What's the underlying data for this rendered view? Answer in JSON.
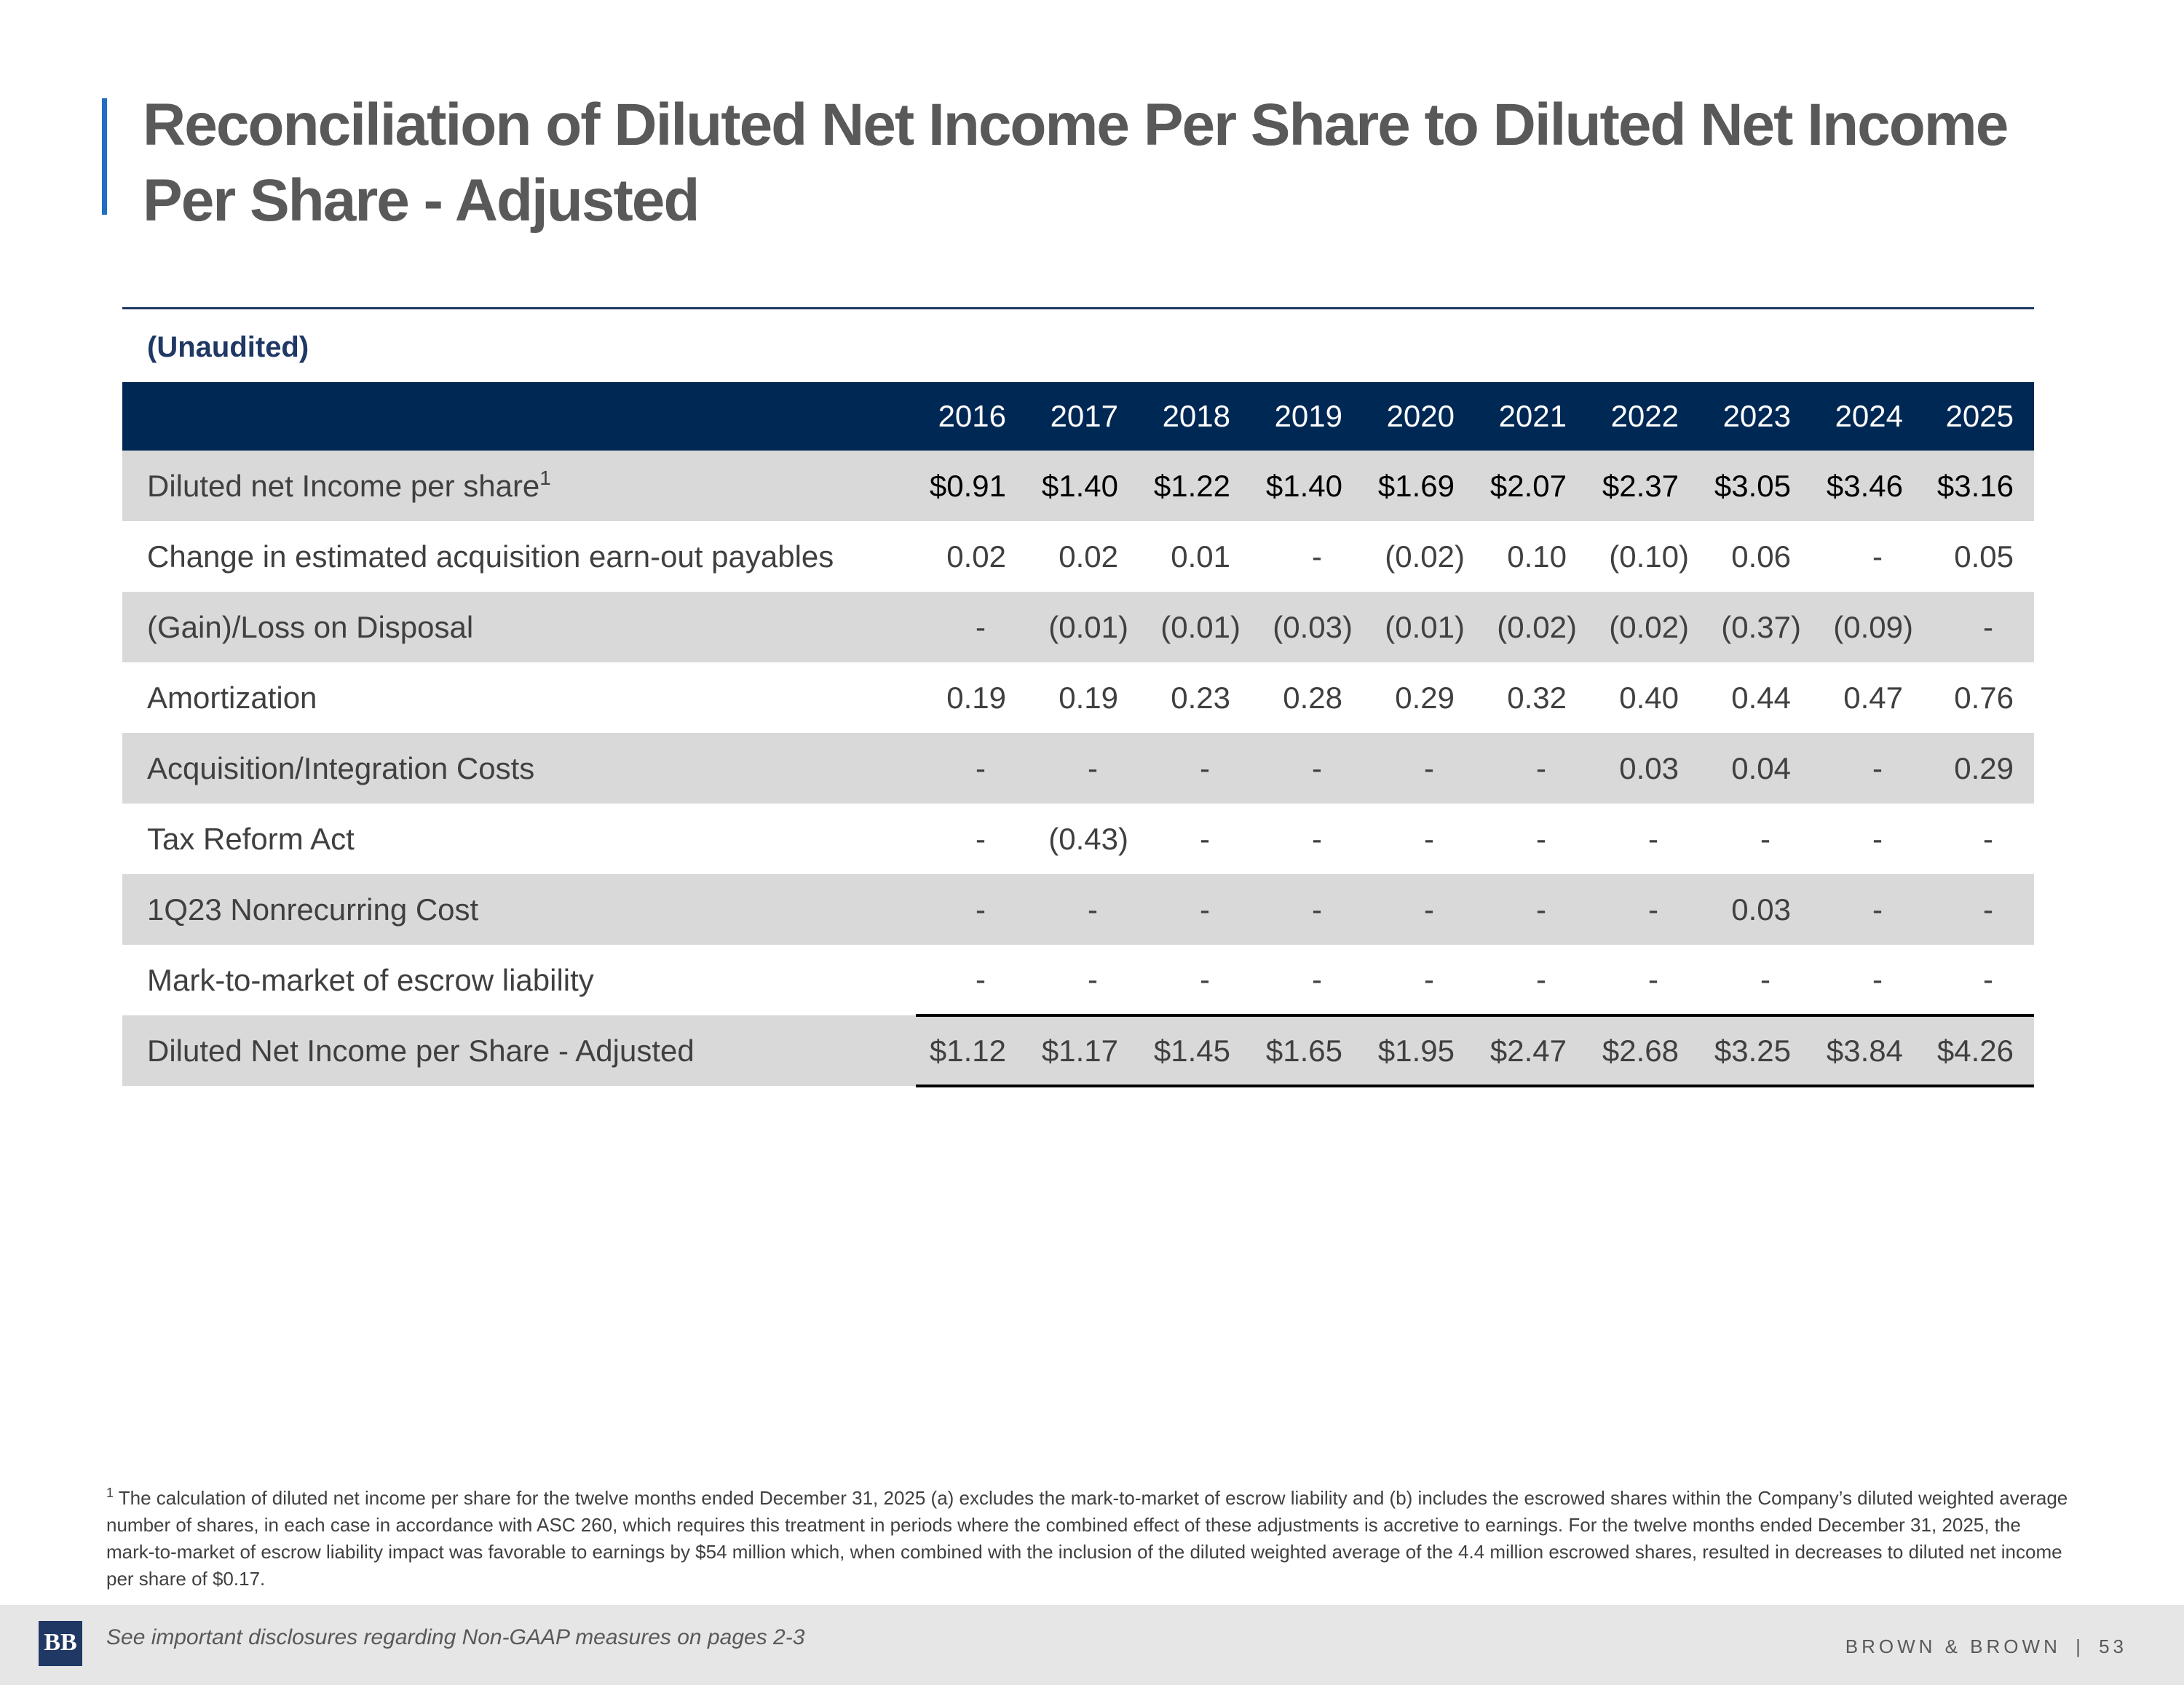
{
  "title": "Reconciliation of Diluted Net Income Per Share to Diluted Net Income Per Share - Adjusted",
  "table": {
    "caption": "(Unaudited)",
    "years": [
      "2016",
      "2017",
      "2018",
      "2019",
      "2020",
      "2021",
      "2022",
      "2023",
      "2024",
      "2025"
    ],
    "rows": [
      {
        "label": "Diluted net Income per share",
        "sup": "1",
        "values": [
          "$0.91",
          "$1.40",
          "$1.22",
          "$1.40",
          "$1.69",
          "$2.07",
          "$2.37",
          "$3.05",
          "$3.46",
          "$3.16"
        ]
      },
      {
        "label": "Change in estimated acquisition earn-out payables",
        "sup": "",
        "values": [
          "0.02",
          "0.02",
          "0.01",
          "-",
          "(0.02)",
          "0.10",
          "(0.10)",
          "0.06",
          "-",
          "0.05"
        ]
      },
      {
        "label": "(Gain)/Loss on Disposal",
        "sup": "",
        "values": [
          "-",
          "(0.01)",
          "(0.01)",
          "(0.03)",
          "(0.01)",
          "(0.02)",
          "(0.02)",
          "(0.37)",
          "(0.09)",
          "-"
        ]
      },
      {
        "label": "Amortization",
        "sup": "",
        "values": [
          "0.19",
          "0.19",
          "0.23",
          "0.28",
          "0.29",
          "0.32",
          "0.40",
          "0.44",
          "0.47",
          "0.76"
        ]
      },
      {
        "label": "Acquisition/Integration Costs",
        "sup": "",
        "values": [
          "-",
          "-",
          "-",
          "-",
          "-",
          "-",
          "0.03",
          "0.04",
          "-",
          "0.29"
        ]
      },
      {
        "label": "Tax Reform Act",
        "sup": "",
        "values": [
          "-",
          "(0.43)",
          "-",
          "-",
          "-",
          "-",
          "-",
          "-",
          "-",
          "-"
        ]
      },
      {
        "label": "1Q23 Nonrecurring Cost",
        "sup": "",
        "values": [
          "-",
          "-",
          "-",
          "-",
          "-",
          "-",
          "-",
          "0.03",
          "-",
          "-"
        ]
      },
      {
        "label": "Mark-to-market of escrow liability",
        "sup": "",
        "values": [
          "-",
          "-",
          "-",
          "-",
          "-",
          "-",
          "-",
          "-",
          "-",
          "-"
        ]
      }
    ],
    "total": {
      "label": "Diluted Net Income per Share - Adjusted",
      "values": [
        "$1.12",
        "$1.17",
        "$1.45",
        "$1.65",
        "$1.95",
        "$2.47",
        "$2.68",
        "$3.25",
        "$3.84",
        "$4.26"
      ]
    }
  },
  "footnote": {
    "marker": "1",
    "text": "The calculation of diluted net income per share for the twelve months ended December 31, 2025 (a) excludes the mark-to-market of escrow liability and (b) includes the escrowed shares within the Company’s diluted weighted average number of shares, in each case in accordance with ASC 260, which requires this treatment in periods where the combined effect of these adjustments is accretive to earnings. For the twelve months ended December 31, 2025, the mark-to-market of escrow liability impact was favorable to earnings by $54 million which, when combined with the inclusion of the diluted weighted average of the 4.4 million escrowed shares, resulted in decreases to diluted net income per share of $0.17."
  },
  "footer": {
    "logo_text": "BB",
    "disclosure": "See important disclosures regarding Non-GAAP measures on pages 2-3",
    "brand": "BROWN & BROWN",
    "separator": "|",
    "page_number": "53"
  },
  "colors": {
    "header_navy": "#002855",
    "accent_blue": "#1f6fc4",
    "row_shade": "#d9d9d9",
    "title_gray": "#595959"
  }
}
